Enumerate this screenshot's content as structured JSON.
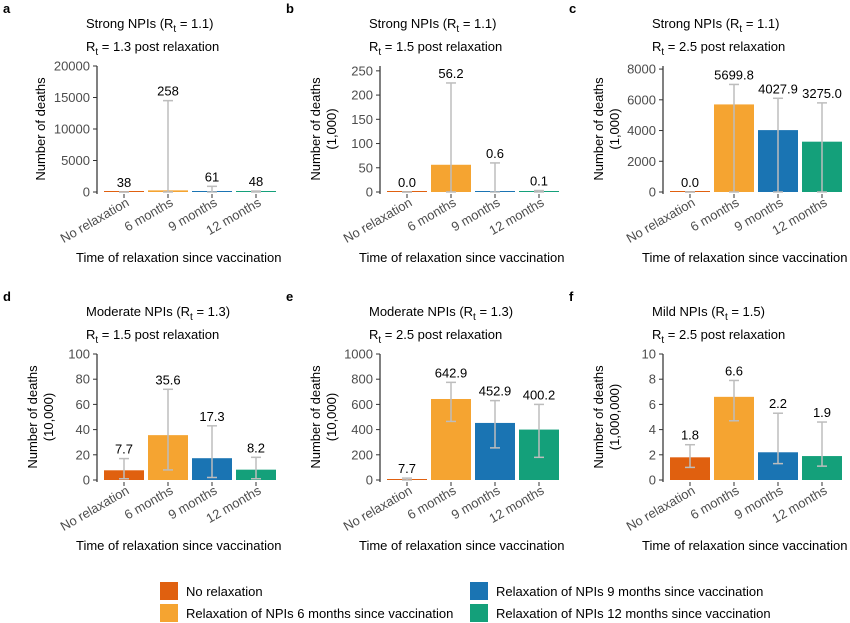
{
  "colors": {
    "no_relaxation": "#E0600F",
    "six_months": "#F5A431",
    "nine_months": "#1A74B3",
    "twelve_months": "#14A07A",
    "error_bar": "#bdbdbd",
    "axis": "#000000"
  },
  "chart_data": [
    {
      "panel": "a",
      "type": "bar",
      "title": "Strong NPIs (R_t = 1.1)",
      "title_main": "Strong NPIs (R",
      "title_sub": "t",
      "title_tail": " = 1.1)",
      "subtitle_main": "R",
      "subtitle_sub": "t",
      "subtitle_tail": " = 1.3 post relaxation",
      "xlabel": "Time of relaxation since vaccination",
      "ylabel": [
        "Number of deaths"
      ],
      "categories": [
        "No relaxation",
        "6 months",
        "9 months",
        "12 months"
      ],
      "values": [
        38,
        258,
        61,
        48
      ],
      "labels": [
        "38",
        "258",
        "61",
        "48"
      ],
      "error_low": [
        0,
        0,
        0,
        0
      ],
      "error_high": [
        0,
        14500,
        900,
        150
      ],
      "ylim": [
        0,
        20000
      ],
      "yticks": [
        0,
        5000,
        10000,
        15000,
        20000
      ],
      "grid": false
    },
    {
      "panel": "b",
      "type": "bar",
      "title_main": "Strong NPIs (R",
      "title_sub": "t",
      "title_tail": " = 1.1)",
      "subtitle_main": "R",
      "subtitle_sub": "t",
      "subtitle_tail": " = 1.5 post relaxation",
      "xlabel": "Time of relaxation since vaccination",
      "ylabel": [
        "Number of deaths",
        "(1,000)"
      ],
      "categories": [
        "No relaxation",
        "6 months",
        "9 months",
        "12 months"
      ],
      "values": [
        0.0,
        56.2,
        0.6,
        0.1
      ],
      "labels": [
        "0.0",
        "56.2",
        "0.6",
        "0.1"
      ],
      "error_low": [
        0,
        0,
        0,
        0
      ],
      "error_high": [
        0,
        225,
        60,
        3
      ],
      "ylim": [
        0,
        260
      ],
      "yticks": [
        0,
        50,
        100,
        150,
        200,
        250
      ],
      "grid": false
    },
    {
      "panel": "c",
      "type": "bar",
      "title_main": "Strong NPIs (R",
      "title_sub": "t",
      "title_tail": " = 1.1)",
      "subtitle_main": "R",
      "subtitle_sub": "t",
      "subtitle_tail": " = 2.5 post relaxation",
      "xlabel": "Time of relaxation since vaccination",
      "ylabel": [
        "Number of deaths",
        "(1,000)"
      ],
      "categories": [
        "No relaxation",
        "6 months",
        "9 months",
        "12 months"
      ],
      "values": [
        0.0,
        5699.8,
        4027.9,
        3275.0
      ],
      "labels": [
        "0.0",
        "5699.8",
        "4027.9",
        "3275.0"
      ],
      "error_low": [
        0,
        0,
        0,
        0
      ],
      "error_high": [
        0,
        7000,
        6100,
        5800
      ],
      "ylim": [
        0,
        8200
      ],
      "yticks": [
        0,
        2000,
        4000,
        6000,
        8000
      ],
      "grid": false
    },
    {
      "panel": "d",
      "type": "bar",
      "title_main": "Moderate NPIs (R",
      "title_sub": "t",
      "title_tail": " = 1.3)",
      "subtitle_main": "R",
      "subtitle_sub": "t",
      "subtitle_tail": " = 1.5 post relaxation",
      "xlabel": "Time of relaxation since vaccination",
      "ylabel": [
        "Number of deaths",
        "(10,000)"
      ],
      "categories": [
        "No relaxation",
        "6 months",
        "9 months",
        "12 months"
      ],
      "values": [
        7.7,
        35.6,
        17.3,
        8.2
      ],
      "labels": [
        "7.7",
        "35.6",
        "17.3",
        "8.2"
      ],
      "error_low": [
        1,
        8,
        2,
        1
      ],
      "error_high": [
        17,
        72,
        43,
        18
      ],
      "ylim": [
        0,
        100
      ],
      "yticks": [
        0,
        20,
        40,
        60,
        80,
        100
      ],
      "grid": false
    },
    {
      "panel": "e",
      "type": "bar",
      "title_main": "Moderate NPIs (R",
      "title_sub": "t",
      "title_tail": " = 1.3)",
      "subtitle_main": "R",
      "subtitle_sub": "t",
      "subtitle_tail": " = 2.5 post relaxation",
      "xlabel": "Time of relaxation since vaccination",
      "ylabel": [
        "Number of deaths",
        "(10,000)"
      ],
      "categories": [
        "No relaxation",
        "6 months",
        "9 months",
        "12 months"
      ],
      "values": [
        7.7,
        642.9,
        452.9,
        400.2
      ],
      "labels": [
        "7.7",
        "642.9",
        "452.9",
        "400.2"
      ],
      "error_low": [
        0,
        465,
        255,
        180
      ],
      "error_high": [
        15,
        775,
        630,
        600
      ],
      "ylim": [
        0,
        1000
      ],
      "yticks": [
        0,
        200,
        400,
        600,
        800,
        1000
      ],
      "grid": false
    },
    {
      "panel": "f",
      "type": "bar",
      "title_main": "Mild NPIs (R",
      "title_sub": "t",
      "title_tail": " = 1.5)",
      "subtitle_main": "R",
      "subtitle_sub": "t",
      "subtitle_tail": " = 2.5 post relaxation",
      "xlabel": "Time of relaxation since vaccination",
      "ylabel": [
        "Number of deaths",
        "(1,000,000)"
      ],
      "categories": [
        "No relaxation",
        "6 months",
        "9 months",
        "12 months"
      ],
      "values": [
        1.8,
        6.6,
        2.2,
        1.9
      ],
      "labels": [
        "1.8",
        "6.6",
        "2.2",
        "1.9"
      ],
      "error_low": [
        1.0,
        4.7,
        1.3,
        1.1
      ],
      "error_high": [
        2.8,
        7.9,
        5.3,
        4.6
      ],
      "ylim": [
        0,
        10
      ],
      "yticks": [
        0,
        2,
        4,
        6,
        8,
        10
      ],
      "grid": false
    }
  ],
  "legend": {
    "placement": "bottom",
    "items": [
      {
        "label": "No relaxation",
        "color_key": "no_relaxation"
      },
      {
        "label": "Relaxation of NPIs 6 months since vaccination",
        "color_key": "six_months"
      },
      {
        "label": "Relaxation of NPIs 9 months since vaccination",
        "color_key": "nine_months"
      },
      {
        "label": "Relaxation of NPIs 12 months since vaccination",
        "color_key": "twelve_months"
      }
    ]
  }
}
